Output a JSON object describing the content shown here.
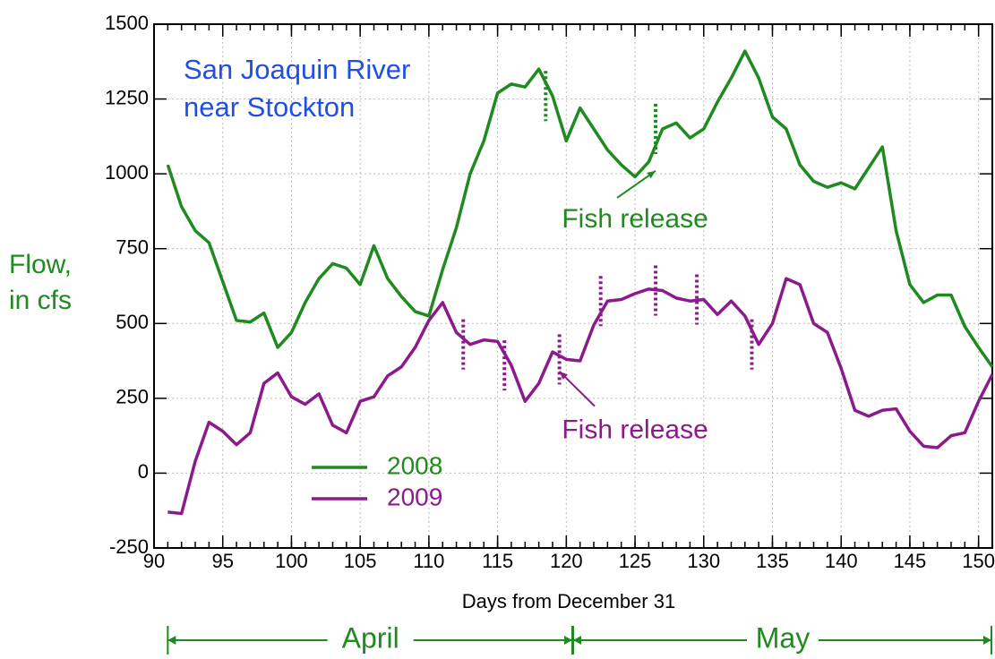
{
  "chart_data": {
    "type": "line",
    "title": [
      "San Joaquin River",
      "near Stockton"
    ],
    "title_color": "#1f4fe6",
    "y_label": [
      "Flow,",
      "in cfs"
    ],
    "y_label_color": "#1f8a1f",
    "x_label": "Days from December 31",
    "x": [
      91,
      92,
      93,
      94,
      95,
      96,
      97,
      98,
      99,
      100,
      101,
      102,
      103,
      104,
      105,
      106,
      107,
      108,
      109,
      110,
      111,
      112,
      113,
      114,
      115,
      116,
      117,
      118,
      119,
      120,
      121,
      122,
      123,
      124,
      125,
      126,
      127,
      128,
      129,
      130,
      131,
      132,
      133,
      134,
      135,
      136,
      137,
      138,
      139,
      140,
      141,
      142,
      143,
      144,
      145,
      146,
      147,
      148,
      149,
      150,
      151
    ],
    "series": [
      {
        "name": "2008",
        "color": "#1f8a1f",
        "values": [
          1030,
          890,
          810,
          770,
          640,
          510,
          505,
          535,
          420,
          470,
          570,
          650,
          700,
          685,
          630,
          760,
          650,
          590,
          540,
          525,
          680,
          820,
          1000,
          1110,
          1270,
          1300,
          1290,
          1350,
          1260,
          1110,
          1220,
          1150,
          1080,
          1030,
          990,
          1040,
          1150,
          1170,
          1120,
          1150,
          1240,
          1320,
          1410,
          1320,
          1190,
          1150,
          1030,
          975,
          955,
          970,
          950,
          1020,
          1090,
          810,
          630,
          570,
          595,
          595,
          490,
          420,
          355
        ],
        "release_days": [
          118.5,
          126.5
        ]
      },
      {
        "name": "2009",
        "color": "#8b1a8b",
        "values": [
          -130,
          -135,
          40,
          170,
          140,
          95,
          135,
          300,
          335,
          255,
          230,
          265,
          160,
          135,
          240,
          255,
          325,
          355,
          420,
          510,
          570,
          470,
          430,
          445,
          440,
          360,
          240,
          300,
          405,
          380,
          375,
          495,
          575,
          580,
          600,
          615,
          610,
          585,
          575,
          580,
          530,
          575,
          525,
          430,
          500,
          650,
          630,
          500,
          470,
          350,
          210,
          190,
          210,
          215,
          140,
          90,
          85,
          125,
          135,
          240,
          330
        ],
        "release_days": [
          112.5,
          115.5,
          119.5,
          122.5,
          126.5,
          129.5,
          133.5
        ]
      }
    ],
    "annotations": [
      {
        "text": "Fish release",
        "series": 0,
        "x": 126.5,
        "y": 1010,
        "label_x": 125,
        "label_y": 845
      },
      {
        "text": "Fish release",
        "series": 1,
        "x": 119.5,
        "y": 340,
        "label_x": 125,
        "label_y": 140
      }
    ],
    "months": [
      {
        "label": "April",
        "start": 91,
        "end": 120.5
      },
      {
        "label": "May",
        "start": 120.5,
        "end": 151
      }
    ],
    "xlim": [
      90,
      151
    ],
    "xticks": [
      90,
      95,
      100,
      105,
      110,
      115,
      120,
      125,
      130,
      135,
      140,
      145,
      150
    ],
    "ylim": [
      -250,
      1500
    ],
    "yticks": [
      -250,
      0,
      250,
      500,
      750,
      1000,
      1250,
      1500
    ],
    "grid": true
  }
}
